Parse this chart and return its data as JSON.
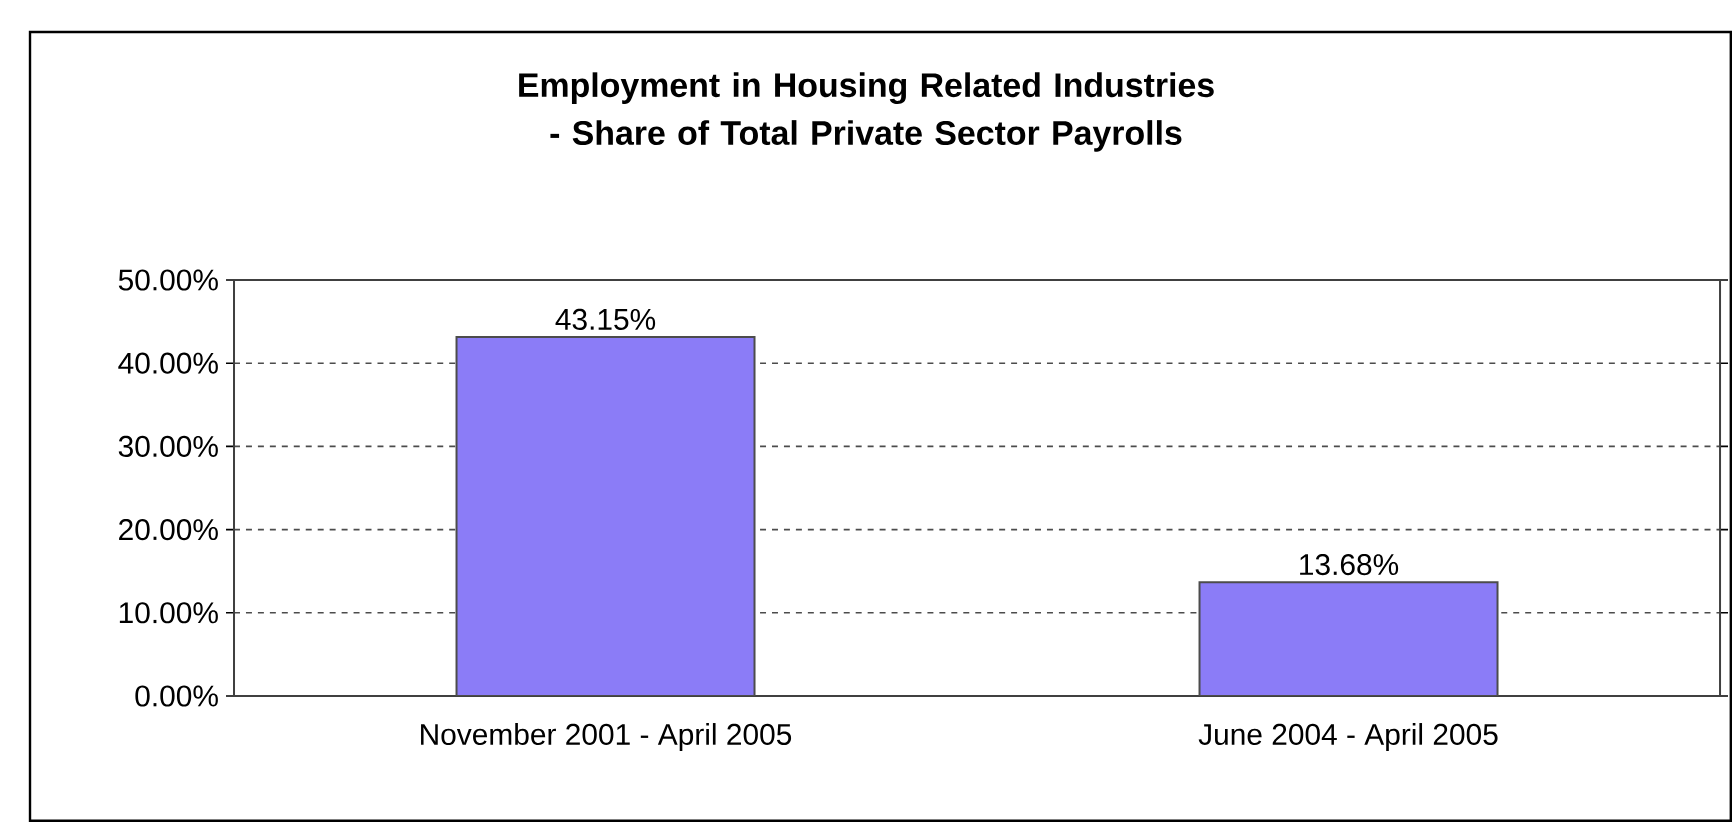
{
  "chart_data": {
    "type": "bar",
    "title": "Employment in Housing Related Industries - Share of Total Private Sector Payrolls",
    "categories": [
      "November 2001 - April 2005",
      "June 2004 - April 2005"
    ],
    "values": [
      43.15,
      13.68
    ],
    "value_labels": [
      "43.15%",
      "13.68%"
    ],
    "color": "#8b7cf7",
    "ylim": [
      0,
      50
    ],
    "yticks": [
      {
        "value": 0,
        "label": "0.00%"
      },
      {
        "value": 10,
        "label": "10.00%"
      },
      {
        "value": 20,
        "label": "20.00%"
      },
      {
        "value": 30,
        "label": "30.00%"
      },
      {
        "value": 40,
        "label": "40.00%"
      },
      {
        "value": 50,
        "label": "50.00%"
      }
    ],
    "grid": "y",
    "line_style": "dashed"
  }
}
